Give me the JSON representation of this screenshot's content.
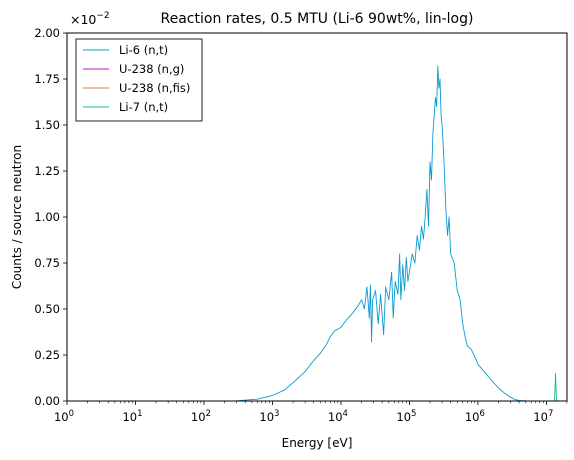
{
  "chart_data": {
    "type": "line",
    "title": "Reaction rates, 0.5 MTU (Li-6 90wt%, lin-log)",
    "xlabel": "Energy [eV]",
    "ylabel": "Counts / source neutron",
    "y_multiplier_label": "×10",
    "y_multiplier_exp": "−2",
    "xscale": "log",
    "xlim": [
      1,
      20000000
    ],
    "ylim": [
      0,
      2.0
    ],
    "grid": false,
    "legend_position": "top-left",
    "x_ticks": [
      {
        "value": 1,
        "base": "10",
        "exp": "0"
      },
      {
        "value": 10,
        "base": "10",
        "exp": "1"
      },
      {
        "value": 100,
        "base": "10",
        "exp": "2"
      },
      {
        "value": 1000,
        "base": "10",
        "exp": "3"
      },
      {
        "value": 10000,
        "base": "10",
        "exp": "4"
      },
      {
        "value": 100000,
        "base": "10",
        "exp": "5"
      },
      {
        "value": 1000000,
        "base": "10",
        "exp": "6"
      },
      {
        "value": 10000000,
        "base": "10",
        "exp": "7"
      }
    ],
    "y_ticks": [
      {
        "value": 0,
        "label": "0.00"
      },
      {
        "value": 0.25,
        "label": "0.25"
      },
      {
        "value": 0.5,
        "label": "0.50"
      },
      {
        "value": 0.75,
        "label": "0.75"
      },
      {
        "value": 1.0,
        "label": "1.00"
      },
      {
        "value": 1.25,
        "label": "1.25"
      },
      {
        "value": 1.5,
        "label": "1.50"
      },
      {
        "value": 1.75,
        "label": "1.75"
      },
      {
        "value": 2.0,
        "label": "2.00"
      }
    ],
    "series": [
      {
        "name": "Li-6 (n,t)",
        "color": "#0c9bd1",
        "points": [
          [
            1,
            0
          ],
          [
            100,
            0
          ],
          [
            300,
            0.001
          ],
          [
            600,
            0.01
          ],
          [
            1000,
            0.03
          ],
          [
            1500,
            0.06
          ],
          [
            2000,
            0.1
          ],
          [
            3000,
            0.16
          ],
          [
            4000,
            0.22
          ],
          [
            5000,
            0.26
          ],
          [
            6000,
            0.3
          ],
          [
            7000,
            0.35
          ],
          [
            8000,
            0.38
          ],
          [
            10000,
            0.4
          ],
          [
            12000,
            0.44
          ],
          [
            15000,
            0.48
          ],
          [
            18000,
            0.52
          ],
          [
            20000,
            0.55
          ],
          [
            22000,
            0.5
          ],
          [
            24000,
            0.62
          ],
          [
            26000,
            0.45
          ],
          [
            27000,
            0.63
          ],
          [
            28000,
            0.32
          ],
          [
            29000,
            0.55
          ],
          [
            32000,
            0.6
          ],
          [
            35000,
            0.42
          ],
          [
            38000,
            0.58
          ],
          [
            42000,
            0.36
          ],
          [
            45000,
            0.62
          ],
          [
            50000,
            0.55
          ],
          [
            55000,
            0.7
          ],
          [
            58000,
            0.45
          ],
          [
            62000,
            0.65
          ],
          [
            68000,
            0.58
          ],
          [
            72000,
            0.8
          ],
          [
            75000,
            0.55
          ],
          [
            80000,
            0.74
          ],
          [
            85000,
            0.6
          ],
          [
            90000,
            0.78
          ],
          [
            95000,
            0.65
          ],
          [
            100000,
            0.7
          ],
          [
            110000,
            0.8
          ],
          [
            120000,
            0.75
          ],
          [
            130000,
            0.9
          ],
          [
            140000,
            0.82
          ],
          [
            150000,
            0.95
          ],
          [
            160000,
            0.88
          ],
          [
            170000,
            1.0
          ],
          [
            180000,
            1.15
          ],
          [
            190000,
            0.95
          ],
          [
            200000,
            1.3
          ],
          [
            210000,
            1.2
          ],
          [
            220000,
            1.45
          ],
          [
            230000,
            1.55
          ],
          [
            240000,
            1.65
          ],
          [
            250000,
            1.6
          ],
          [
            260000,
            1.82
          ],
          [
            270000,
            1.7
          ],
          [
            280000,
            1.75
          ],
          [
            290000,
            1.55
          ],
          [
            300000,
            1.5
          ],
          [
            320000,
            1.3
          ],
          [
            340000,
            1.05
          ],
          [
            360000,
            0.9
          ],
          [
            380000,
            1.0
          ],
          [
            400000,
            0.8
          ],
          [
            450000,
            0.75
          ],
          [
            500000,
            0.6
          ],
          [
            550000,
            0.55
          ],
          [
            600000,
            0.42
          ],
          [
            650000,
            0.35
          ],
          [
            700000,
            0.3
          ],
          [
            800000,
            0.28
          ],
          [
            900000,
            0.24
          ],
          [
            1000000,
            0.2
          ],
          [
            1300000,
            0.15
          ],
          [
            1600000,
            0.11
          ],
          [
            2000000,
            0.07
          ],
          [
            2500000,
            0.04
          ],
          [
            3000000,
            0.02
          ],
          [
            3500000,
            0.008
          ],
          [
            4000000,
            0.003
          ],
          [
            5000000,
            0.001
          ],
          [
            6000000,
            0
          ],
          [
            20000000,
            0
          ]
        ]
      },
      {
        "name": "U-238 (n,g)",
        "color": "#c515c5",
        "points": [
          [
            1,
            0
          ],
          [
            20000000,
            0
          ]
        ]
      },
      {
        "name": "U-238 (n,fis)",
        "color": "#ee7722",
        "points": [
          [
            1,
            0
          ],
          [
            20000000,
            0
          ]
        ]
      },
      {
        "name": "Li-7 (n,t)",
        "color": "#17bf83",
        "points": [
          [
            1,
            0
          ],
          [
            13000000,
            0
          ],
          [
            13300000,
            0.04
          ],
          [
            13600000,
            0.15
          ],
          [
            13800000,
            0.08
          ],
          [
            14100000,
            0.0
          ],
          [
            20000000,
            0
          ]
        ]
      }
    ]
  }
}
